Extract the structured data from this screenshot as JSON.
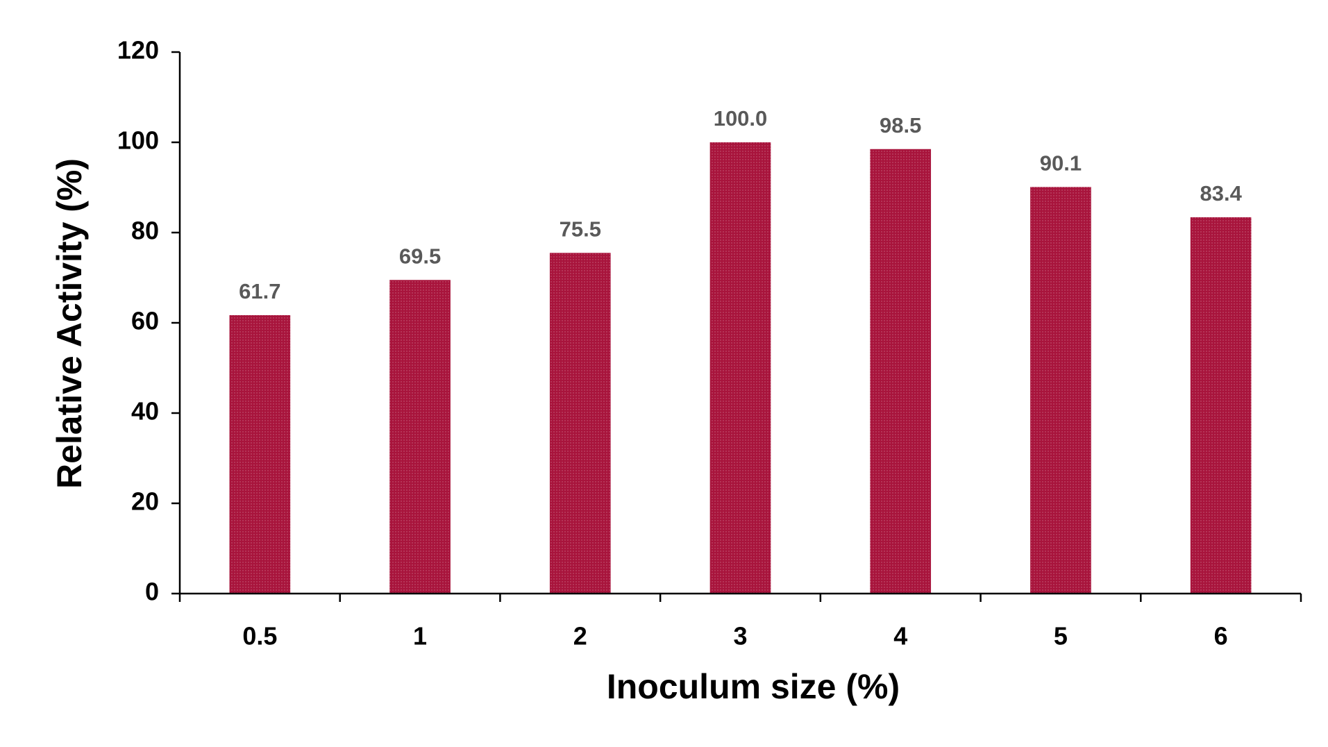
{
  "chart_data": {
    "type": "bar",
    "x_label": "Inoculum size (%)",
    "y_label": "Relative Activity (%)",
    "categories": [
      "0.5",
      "1",
      "2",
      "3",
      "4",
      "5",
      "6"
    ],
    "values": [
      61.7,
      69.5,
      75.5,
      100.0,
      98.5,
      90.1,
      83.4
    ],
    "value_labels": [
      "61.7",
      "69.5",
      "75.5",
      "100.0",
      "98.5",
      "90.1",
      "83.4"
    ],
    "color": "#a8143c",
    "ylim": [
      0,
      120
    ],
    "yticks": [
      0,
      20,
      40,
      60,
      80,
      100,
      120
    ],
    "grid": false
  }
}
